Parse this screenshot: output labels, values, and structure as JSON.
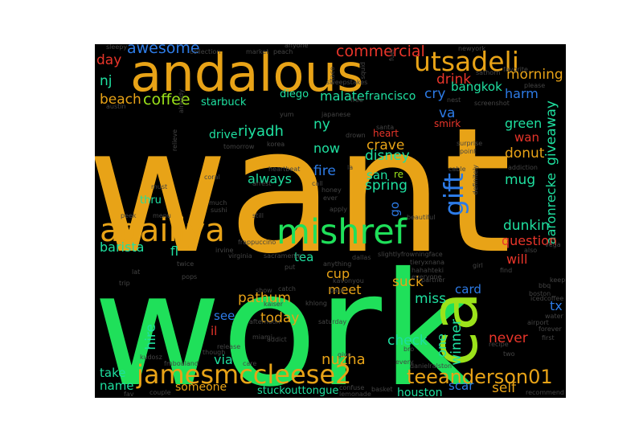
{
  "cloud": {
    "background": "#000000",
    "words": [
      {
        "text": "want",
        "color": "#e8a317"
      },
      {
        "text": "work",
        "color": "#1fe05a"
      },
      {
        "text": "andalous",
        "color": "#e8a317"
      },
      {
        "text": "mishref",
        "color": "#1fe05a"
      },
      {
        "text": "adailiya",
        "color": "#e8a317"
      },
      {
        "text": "jamesmccleese2",
        "color": "#e8a317"
      },
      {
        "text": "utsadeli",
        "color": "#e8a317"
      },
      {
        "text": "ca",
        "color": "#9be21a"
      },
      {
        "text": "gift",
        "color": "#2d7be6"
      },
      {
        "text": "teeanderson01",
        "color": "#e8a317"
      },
      {
        "text": "commercial",
        "color": "#e8352a"
      },
      {
        "text": "awesome",
        "color": "#2d7be6"
      },
      {
        "text": "day",
        "color": "#e8352a"
      },
      {
        "text": "nj",
        "color": "#1fe0a0"
      },
      {
        "text": "beach",
        "color": "#e8a317"
      },
      {
        "text": "coffee",
        "color": "#9be21a"
      },
      {
        "text": "starbuck",
        "color": "#1fe0a0"
      },
      {
        "text": "diego",
        "color": "#1fe0a0"
      },
      {
        "text": "malate",
        "color": "#1fe0a0"
      },
      {
        "text": "francisco",
        "color": "#1fe0a0"
      },
      {
        "text": "cry",
        "color": "#2d7be6"
      },
      {
        "text": "drink",
        "color": "#e8352a"
      },
      {
        "text": "bangkok",
        "color": "#1fe0a0"
      },
      {
        "text": "morning",
        "color": "#e8a317"
      },
      {
        "text": "harm",
        "color": "#2d7be6"
      },
      {
        "text": "riyadh",
        "color": "#1fe0a0"
      },
      {
        "text": "drive",
        "color": "#1fe0a0"
      },
      {
        "text": "ny",
        "color": "#1fe0a0"
      },
      {
        "text": "now",
        "color": "#1fe0a0"
      },
      {
        "text": "va",
        "color": "#2d7be6"
      },
      {
        "text": "crave",
        "color": "#e8a317"
      },
      {
        "text": "green",
        "color": "#1fe0a0"
      },
      {
        "text": "wan",
        "color": "#e8352a"
      },
      {
        "text": "donut",
        "color": "#e8a317"
      },
      {
        "text": "giveaway",
        "color": "#1fe0a0"
      },
      {
        "text": "aaronrecke",
        "color": "#1fe0a0"
      },
      {
        "text": "disney",
        "color": "#1fe0a0"
      },
      {
        "text": "heart",
        "color": "#e8352a"
      },
      {
        "text": "smirk",
        "color": "#e8352a"
      },
      {
        "text": "fire",
        "color": "#2d7be6"
      },
      {
        "text": "san",
        "color": "#1fe0a0"
      },
      {
        "text": "re",
        "color": "#9be21a"
      },
      {
        "text": "spring",
        "color": "#1fe0a0"
      },
      {
        "text": "always",
        "color": "#1fe0a0"
      },
      {
        "text": "thru",
        "color": "#1fe0a0"
      },
      {
        "text": "mug",
        "color": "#1fe0a0"
      },
      {
        "text": "dunkin",
        "color": "#1fe0a0"
      },
      {
        "text": "question",
        "color": "#e8352a"
      },
      {
        "text": "barista",
        "color": "#1fe0a0"
      },
      {
        "text": "fl",
        "color": "#1fe0a0"
      },
      {
        "text": "tea",
        "color": "#1fe0a0"
      },
      {
        "text": "will",
        "color": "#e8352a"
      },
      {
        "text": "cup",
        "color": "#e8a317"
      },
      {
        "text": "pathum",
        "color": "#e8a317"
      },
      {
        "text": "suck",
        "color": "#e8a317"
      },
      {
        "text": "card",
        "color": "#2d7be6"
      },
      {
        "text": "miss",
        "color": "#1fe0a0"
      },
      {
        "text": "never",
        "color": "#e8352a"
      },
      {
        "text": "tx",
        "color": "#2d7be6"
      },
      {
        "text": "meet",
        "color": "#e8a317"
      },
      {
        "text": "today",
        "color": "#e8a317"
      },
      {
        "text": "hire",
        "color": "#1fe0a0"
      },
      {
        "text": "see",
        "color": "#2d7be6"
      },
      {
        "text": "il",
        "color": "#e8352a"
      },
      {
        "text": "check",
        "color": "#1fe0a0"
      },
      {
        "text": "one",
        "color": "#1fe0a0"
      },
      {
        "text": "winner",
        "color": "#1fe0a0"
      },
      {
        "text": "via",
        "color": "#1fe0a0"
      },
      {
        "text": "nuzha",
        "color": "#e8a317"
      },
      {
        "text": "take",
        "color": "#1fe0a0"
      },
      {
        "text": "name",
        "color": "#1fe0a0"
      },
      {
        "text": "someone",
        "color": "#e8a317"
      },
      {
        "text": "stuckouttongue",
        "color": "#1fe0a0"
      },
      {
        "text": "houston",
        "color": "#1fe0a0"
      },
      {
        "text": "scar",
        "color": "#2d7be6"
      },
      {
        "text": "self",
        "color": "#e8a317"
      },
      {
        "text": "go",
        "color": "#2d7be6"
      },
      {
        "text": "sleepy",
        "color": "#444444"
      },
      {
        "text": "collection",
        "color": "#444444"
      },
      {
        "text": "market",
        "color": "#444444"
      },
      {
        "text": "peach",
        "color": "#444444"
      },
      {
        "text": "fuel",
        "color": "#444444"
      },
      {
        "text": "newyork",
        "color": "#444444"
      },
      {
        "text": "please",
        "color": "#444444"
      },
      {
        "text": "austin",
        "color": "#444444"
      },
      {
        "text": "sweepstakes",
        "color": "#444444"
      },
      {
        "text": "japanese",
        "color": "#444444"
      },
      {
        "text": "korea",
        "color": "#444444"
      },
      {
        "text": "tomorrow",
        "color": "#444444"
      },
      {
        "text": "santa",
        "color": "#444444"
      },
      {
        "text": "surprise",
        "color": "#444444"
      },
      {
        "text": "heartbeat",
        "color": "#444444"
      },
      {
        "text": "arrest",
        "color": "#444444"
      },
      {
        "text": "coral",
        "color": "#444444"
      },
      {
        "text": "must",
        "color": "#444444"
      },
      {
        "text": "much",
        "color": "#444444"
      },
      {
        "text": "sushi",
        "color": "#444444"
      },
      {
        "text": "peek",
        "color": "#444444"
      },
      {
        "text": "menu",
        "color": "#444444"
      },
      {
        "text": "honey",
        "color": "#444444"
      },
      {
        "text": "ever",
        "color": "#444444"
      },
      {
        "text": "still",
        "color": "#444444"
      },
      {
        "text": "beautiful",
        "color": "#444444"
      },
      {
        "text": "addiction",
        "color": "#444444"
      },
      {
        "text": "frappuccino",
        "color": "#444444"
      },
      {
        "text": "irvine",
        "color": "#444444"
      },
      {
        "text": "virginia",
        "color": "#444444"
      },
      {
        "text": "sacramento",
        "color": "#444444"
      },
      {
        "text": "dallas",
        "color": "#444444"
      },
      {
        "text": "slightlyfrowningface",
        "color": "#444444"
      },
      {
        "text": "tieryxnana",
        "color": "#444444"
      },
      {
        "text": "hahahteki",
        "color": "#444444"
      },
      {
        "text": "everyone",
        "color": "#444444"
      },
      {
        "text": "anything",
        "color": "#444444"
      },
      {
        "text": "twice",
        "color": "#444444"
      },
      {
        "text": "lat",
        "color": "#444444"
      },
      {
        "text": "trip",
        "color": "#444444"
      },
      {
        "text": "pops",
        "color": "#444444"
      },
      {
        "text": "show",
        "color": "#444444"
      },
      {
        "text": "catch",
        "color": "#444444"
      },
      {
        "text": "kaiser",
        "color": "#444444"
      },
      {
        "text": "khlong",
        "color": "#444444"
      },
      {
        "text": "back",
        "color": "#444444"
      },
      {
        "text": "afternoon",
        "color": "#444444"
      },
      {
        "text": "saturday",
        "color": "#444444"
      },
      {
        "text": "miami",
        "color": "#444444"
      },
      {
        "text": "addict",
        "color": "#444444"
      },
      {
        "text": "release",
        "color": "#444444"
      },
      {
        "text": "though",
        "color": "#444444"
      },
      {
        "text": "kudosz",
        "color": "#444444"
      },
      {
        "text": "fmbouland",
        "color": "#444444"
      },
      {
        "text": "care",
        "color": "#444444"
      },
      {
        "text": "fav",
        "color": "#444444"
      },
      {
        "text": "couple",
        "color": "#444444"
      },
      {
        "text": "confuse",
        "color": "#444444"
      },
      {
        "text": "lemonade",
        "color": "#444444"
      },
      {
        "text": "basket",
        "color": "#444444"
      },
      {
        "text": "danielralston",
        "color": "#444444"
      },
      {
        "text": "every",
        "color": "#444444"
      },
      {
        "text": "recipe",
        "color": "#444444"
      },
      {
        "text": "two",
        "color": "#444444"
      },
      {
        "text": "first",
        "color": "#444444"
      },
      {
        "text": "forever",
        "color": "#444444"
      },
      {
        "text": "water",
        "color": "#444444"
      },
      {
        "text": "airport",
        "color": "#444444"
      },
      {
        "text": "boston",
        "color": "#444444"
      },
      {
        "text": "icedcoffee",
        "color": "#444444"
      },
      {
        "text": "keep",
        "color": "#444444"
      },
      {
        "text": "find",
        "color": "#444444"
      },
      {
        "text": "also",
        "color": "#444444"
      },
      {
        "text": "recommend",
        "color": "#444444"
      },
      {
        "text": "partner",
        "color": "#444444"
      },
      {
        "text": "kavonyou",
        "color": "#444444"
      },
      {
        "text": "bro",
        "color": "#444444"
      },
      {
        "text": "point",
        "color": "#444444"
      },
      {
        "text": "cable",
        "color": "#444444"
      },
      {
        "text": "definitely",
        "color": "#444444"
      },
      {
        "text": "call",
        "color": "#444444"
      },
      {
        "text": "apply",
        "color": "#444444"
      },
      {
        "text": "yum",
        "color": "#444444"
      },
      {
        "text": "drown",
        "color": "#444444"
      },
      {
        "text": "free",
        "color": "#444444"
      },
      {
        "text": "nest",
        "color": "#444444"
      },
      {
        "text": "favorite",
        "color": "#444444"
      },
      {
        "text": "sathorn",
        "color": "#444444"
      },
      {
        "text": "anyone",
        "color": "#444444"
      },
      {
        "text": "already",
        "color": "#444444"
      },
      {
        "text": "relieve",
        "color": "#444444"
      },
      {
        "text": "squid",
        "color": "#444444"
      },
      {
        "text": "taco",
        "color": "#444444"
      },
      {
        "text": "put",
        "color": "#444444"
      },
      {
        "text": "la",
        "color": "#444444"
      },
      {
        "text": "bbq",
        "color": "#444444"
      },
      {
        "text": "girl",
        "color": "#444444"
      },
      {
        "text": "give",
        "color": "#444444"
      },
      {
        "text": "vega",
        "color": "#444444"
      },
      {
        "text": "screenshot",
        "color": "#444444"
      }
    ]
  }
}
